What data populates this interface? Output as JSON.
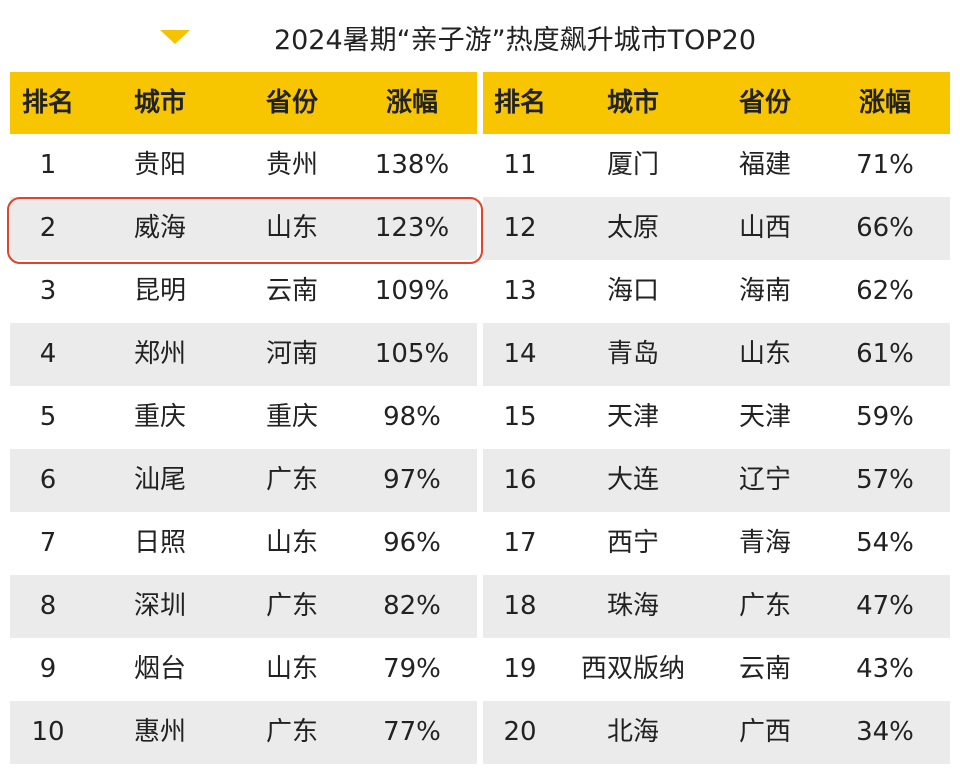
{
  "title": "2024暑期“亲子游”热度飙升城市TOP20",
  "tables": [
    {
      "header": [
        "排名",
        "城市",
        "省份",
        "涨幅"
      ],
      "rows": [
        [
          "1",
          "贵阳",
          "贵州",
          "138%"
        ],
        [
          "2",
          "威海",
          "山东",
          "123%"
        ],
        [
          "3",
          "昆明",
          "云南",
          "109%"
        ],
        [
          "4",
          "郑州",
          "河南",
          "105%"
        ],
        [
          "5",
          "重庆",
          "重庆",
          "98%"
        ],
        [
          "6",
          "汕尾",
          "广东",
          "97%"
        ],
        [
          "7",
          "日照",
          "山东",
          "96%"
        ],
        [
          "8",
          "深圳",
          "广东",
          "82%"
        ],
        [
          "9",
          "烟台",
          "山东",
          "79%"
        ],
        [
          "10",
          "惠州",
          "广东",
          "77%"
        ]
      ]
    },
    {
      "header": [
        "排名",
        "城市",
        "省份",
        "涨幅"
      ],
      "rows": [
        [
          "11",
          "厦门",
          "福建",
          "71%"
        ],
        [
          "12",
          "太原",
          "山西",
          "66%"
        ],
        [
          "13",
          "海口",
          "海南",
          "62%"
        ],
        [
          "14",
          "青岛",
          "山东",
          "61%"
        ],
        [
          "15",
          "天津",
          "天津",
          "59%"
        ],
        [
          "16",
          "大连",
          "辽宁",
          "57%"
        ],
        [
          "17",
          "西宁",
          "青海",
          "54%"
        ],
        [
          "18",
          "珠海",
          "广东",
          "47%"
        ],
        [
          "19",
          "西双版纳",
          "云南",
          "43%"
        ],
        [
          "20",
          "北海",
          "广西",
          "34%"
        ]
      ]
    }
  ]
}
